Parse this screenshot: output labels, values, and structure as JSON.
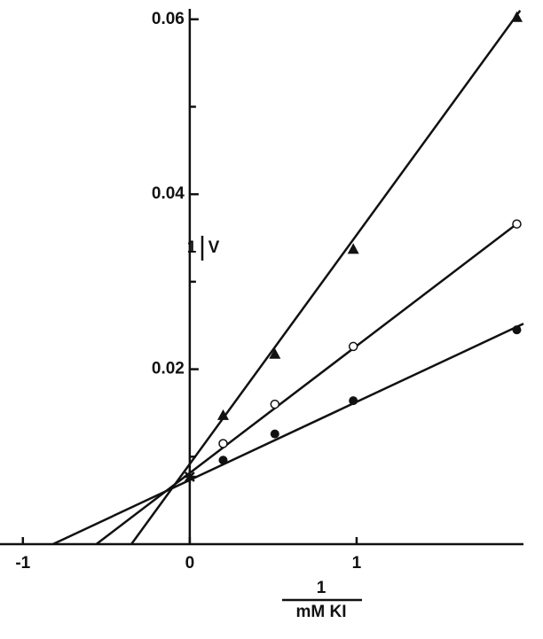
{
  "chart_data": {
    "type": "scatter",
    "xlabel": {
      "numerator": "1",
      "denominator": "mM KI"
    },
    "ylabel": {
      "numerator": "1",
      "denominator": "V"
    },
    "xlim": [
      -1.1,
      2.0
    ],
    "ylim": [
      0,
      0.062
    ],
    "xticks": [
      -1,
      0,
      1
    ],
    "yticks": [
      0.02,
      0.04,
      0.06
    ],
    "y_minor_ticks": [
      0.01,
      0.03,
      0.05
    ],
    "series": [
      {
        "marker": "triangle",
        "color": "#111111",
        "x": [
          0.2,
          0.51,
          0.98,
          1.96
        ],
        "values": [
          0.0147,
          0.0217,
          0.0337,
          0.0602
        ]
      },
      {
        "marker": "open-circle",
        "color": "#111111",
        "x": [
          0.2,
          0.51,
          0.98,
          1.96
        ],
        "values": [
          0.0115,
          0.016,
          0.0226,
          0.0366
        ]
      },
      {
        "marker": "filled-circle",
        "color": "#111111",
        "x": [
          0.2,
          0.51,
          0.98,
          1.96
        ],
        "values": [
          0.0096,
          0.0126,
          0.0164,
          0.0245
        ]
      },
      {
        "marker": "star",
        "color": "#111111",
        "x": [
          0
        ],
        "values": [
          0.0077
        ]
      }
    ],
    "fit_lines": [
      {
        "x": [
          -0.35,
          1.98
        ],
        "values": [
          0,
          0.061
        ]
      },
      {
        "x": [
          -0.56,
          1.98
        ],
        "values": [
          0,
          0.0369
        ]
      },
      {
        "x": [
          -0.82,
          2.0
        ],
        "values": [
          0,
          0.0252
        ]
      }
    ]
  }
}
